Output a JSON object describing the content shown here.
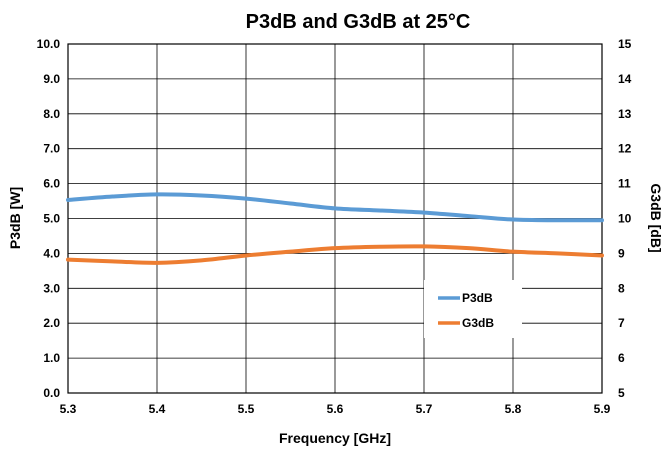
{
  "chart_data": {
    "type": "line",
    "title": "P3dB and G3dB at 25°C",
    "xlabel": "Frequency [GHz]",
    "ylabel_left": "P3dB [W]",
    "ylabel_right": "G3dB [dB]",
    "xlim": [
      5.3,
      5.9
    ],
    "ylim_left": [
      0.0,
      10.0
    ],
    "ylim_right": [
      5,
      15
    ],
    "x_ticks": [
      "5.3",
      "5.4",
      "5.5",
      "5.6",
      "5.7",
      "5.8",
      "5.9"
    ],
    "y_left_ticks": [
      "0.0",
      "1.0",
      "2.0",
      "3.0",
      "4.0",
      "5.0",
      "6.0",
      "7.0",
      "8.0",
      "9.0",
      "10.0"
    ],
    "y_right_ticks": [
      "5",
      "6",
      "7",
      "8",
      "9",
      "10",
      "11",
      "12",
      "13",
      "14",
      "15"
    ],
    "grid": true,
    "legend_position": "lower-right",
    "series": [
      {
        "name": "P3dB",
        "axis": "left",
        "color": "#5b9bd5",
        "x": [
          5.3,
          5.35,
          5.4,
          5.45,
          5.5,
          5.55,
          5.6,
          5.65,
          5.7,
          5.75,
          5.8,
          5.85,
          5.9
        ],
        "y": [
          5.53,
          5.63,
          5.69,
          5.66,
          5.57,
          5.43,
          5.29,
          5.23,
          5.17,
          5.07,
          4.97,
          4.95,
          4.95
        ]
      },
      {
        "name": "G3dB",
        "axis": "right",
        "color": "#ed7d31",
        "x": [
          5.3,
          5.35,
          5.4,
          5.45,
          5.5,
          5.55,
          5.6,
          5.65,
          5.7,
          5.75,
          5.8,
          5.85,
          5.9
        ],
        "y": [
          8.82,
          8.77,
          8.73,
          8.8,
          8.94,
          9.05,
          9.15,
          9.19,
          9.2,
          9.15,
          9.05,
          9.0,
          8.94
        ]
      }
    ]
  }
}
